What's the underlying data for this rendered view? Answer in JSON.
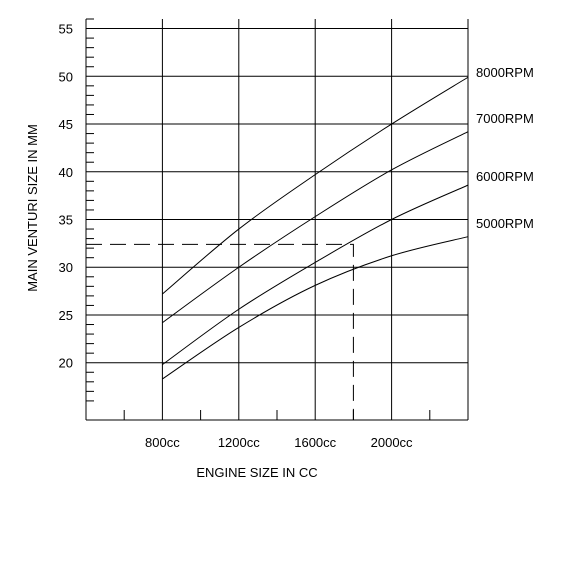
{
  "chart_data": {
    "type": "line",
    "title": "",
    "xlabel": "ENGINE SIZE IN CC",
    "ylabel": "MAIN VENTURI SIZE IN MM",
    "x_ticks": [
      {
        "value": 800,
        "label": "800cc"
      },
      {
        "value": 1200,
        "label": "1200cc"
      },
      {
        "value": 1600,
        "label": "1600cc"
      },
      {
        "value": 2000,
        "label": "2000cc"
      }
    ],
    "y_ticks": [
      {
        "value": 20,
        "label": "20"
      },
      {
        "value": 25,
        "label": "25"
      },
      {
        "value": 30,
        "label": "30"
      },
      {
        "value": 35,
        "label": "35"
      },
      {
        "value": 40,
        "label": "40"
      },
      {
        "value": 45,
        "label": "45"
      },
      {
        "value": 50,
        "label": "50"
      },
      {
        "value": 55,
        "label": "55"
      }
    ],
    "xlim": [
      400,
      2400
    ],
    "ylim": [
      14,
      56
    ],
    "grid": true,
    "legend_position": "right",
    "series": [
      {
        "name": "8000RPM",
        "x": [
          800,
          1200,
          1600,
          2000,
          2400
        ],
        "y": [
          27.2,
          34.0,
          39.7,
          45.0,
          49.9
        ]
      },
      {
        "name": "7000RPM",
        "x": [
          800,
          1200,
          1600,
          2000,
          2400
        ],
        "y": [
          24.2,
          30.0,
          35.3,
          40.2,
          44.2
        ]
      },
      {
        "name": "6000RPM",
        "x": [
          800,
          1200,
          1600,
          2000,
          2400
        ],
        "y": [
          19.8,
          25.6,
          30.5,
          35.0,
          38.6
        ]
      },
      {
        "name": "5000RPM",
        "x": [
          800,
          1200,
          1600,
          2000,
          2400
        ],
        "y": [
          18.3,
          23.7,
          28.1,
          31.2,
          33.2
        ]
      }
    ],
    "annotation": {
      "style": "dashed",
      "from_y": 32.4,
      "corner_x": 1800,
      "to_y": 14
    }
  }
}
